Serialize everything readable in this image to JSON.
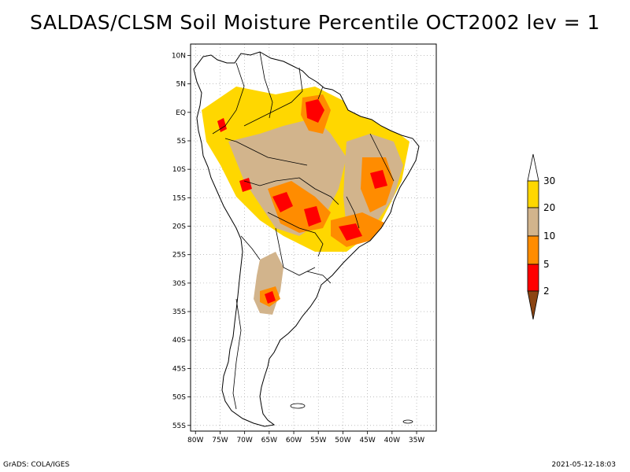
{
  "title": "SALDAS/CLSM Soil Moisture Percentile OCT2002 lev = 1",
  "footer": {
    "left": "GrADS: COLA/IGES",
    "right": "2021-05-12-18:03"
  },
  "map": {
    "lon_range": [
      -81,
      -31
    ],
    "lat_range": [
      -56,
      12
    ],
    "lon_ticks": [
      "80W",
      "75W",
      "70W",
      "65W",
      "60W",
      "55W",
      "50W",
      "45W",
      "40W",
      "35W"
    ],
    "lat_ticks": [
      "10N",
      "5N",
      "EQ",
      "5S",
      "10S",
      "15S",
      "20S",
      "25S",
      "30S",
      "35S",
      "40S",
      "45S",
      "50S",
      "55S"
    ]
  },
  "legend": {
    "levels": [
      "30",
      "20",
      "10",
      "5",
      "2"
    ],
    "colors": {
      "above30": "#ffffff",
      "20to30": "#ffd700",
      "10to20": "#d2b48c",
      "5to10": "#ff8c00",
      "2to5": "#ff0000",
      "below2": "#8b4513"
    }
  },
  "colors": {
    "outline": "#000000",
    "grid": "#999999"
  }
}
